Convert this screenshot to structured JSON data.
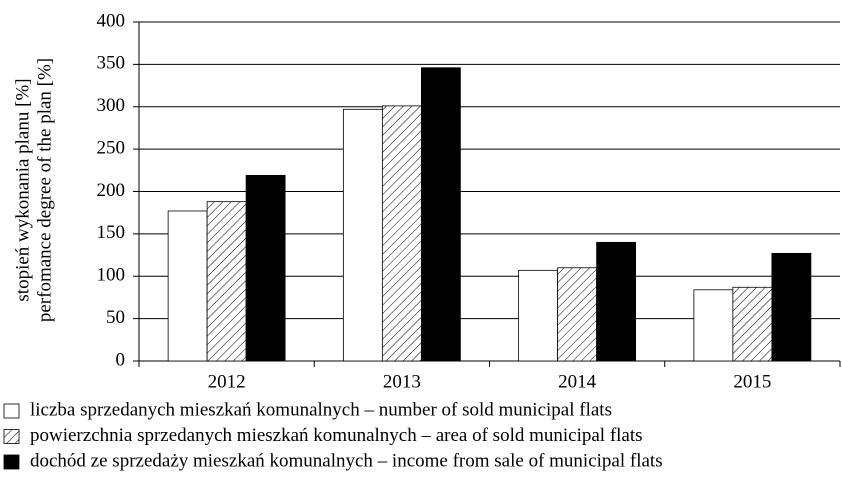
{
  "chart_data": {
    "type": "bar",
    "ylabel": [
      "stopień wykonania planu [%]",
      "perfomance degree of the plan [%]"
    ],
    "categories": [
      "2012",
      "2013",
      "2014",
      "2015"
    ],
    "series": [
      {
        "name": "liczba sprzedanych mieszkań komunalnych – number of sold municipal flats",
        "color": "#ffffff",
        "values": [
          177,
          297,
          107,
          84
        ]
      },
      {
        "name": "powierzchnia sprzedanych mieszkań komunalnych – area of sold municipal flats",
        "color": "#ffffff",
        "pattern": "hatch",
        "values": [
          188,
          301,
          110,
          87
        ]
      },
      {
        "name": "dochód ze sprzedaży mieszkań komunalnych – income from sale of municipal flats",
        "color": "#000000",
        "values": [
          219,
          346,
          140,
          127
        ]
      }
    ],
    "ylim": [
      0,
      400
    ],
    "yticks": [
      0,
      50,
      100,
      150,
      200,
      250,
      300,
      350,
      400
    ],
    "grid": true,
    "legend": "bottom"
  }
}
